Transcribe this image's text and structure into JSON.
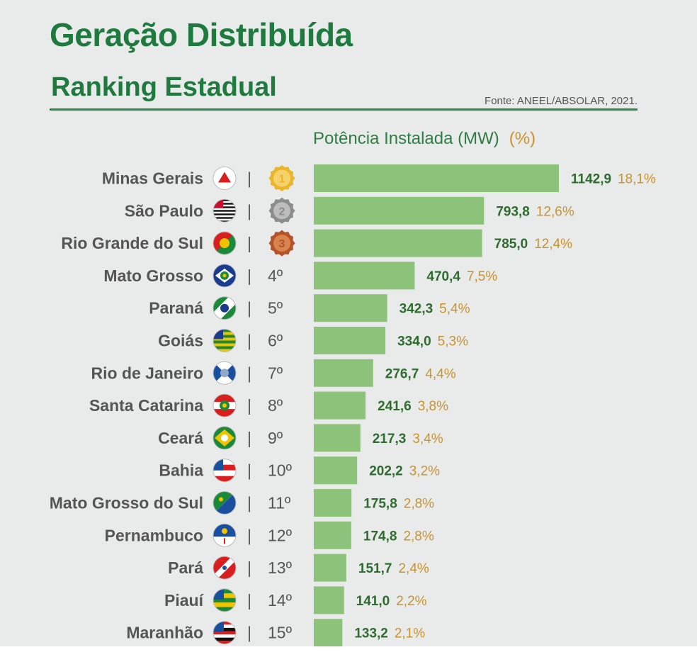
{
  "header": {
    "title": "Geração Distribuída",
    "subtitle": "Ranking Estadual",
    "source": "Fonte: ANEEL/ABSOLAR, 2021.",
    "column_label": "Potência Instalada (MW)",
    "pct_label": "(%)"
  },
  "colors": {
    "title": "#1e7a3e",
    "bar": "#8dc27a",
    "value": "#2f6b2f",
    "percent": "#c8932f",
    "state_label": "#555555"
  },
  "chart_data": {
    "type": "bar",
    "orientation": "horizontal",
    "title": "Potência Instalada (MW)",
    "categories": [
      "Minas Gerais",
      "São Paulo",
      "Rio Grande do Sul",
      "Mato Grosso",
      "Paraná",
      "Goiás",
      "Rio de Janeiro",
      "Santa Catarina",
      "Ceará",
      "Bahia",
      "Mato Grosso do Sul",
      "Pernambuco",
      "Pará",
      "Piauí",
      "Maranhão"
    ],
    "values": [
      1142.9,
      793.8,
      785.0,
      470.4,
      342.3,
      334.0,
      276.7,
      241.6,
      217.3,
      202.2,
      175.8,
      174.8,
      151.7,
      141.0,
      133.2
    ],
    "value_labels": [
      "1142,9",
      "793,8",
      "785,0",
      "470,4",
      "342,3",
      "334,0",
      "276,7",
      "241,6",
      "217,3",
      "202,2",
      "175,8",
      "174,8",
      "151,7",
      "141,0",
      "133,2"
    ],
    "percent_labels": [
      "18,1%",
      "12,6%",
      "12,4%",
      "7,5%",
      "5,4%",
      "5,3%",
      "4,4%",
      "3,8%",
      "3,4%",
      "3,2%",
      "2,8%",
      "2,8%",
      "2,4%",
      "2,2%",
      "2,1%"
    ],
    "rank_labels": [
      "1",
      "2",
      "3",
      "4º",
      "5º",
      "6º",
      "7º",
      "8º",
      "9º",
      "10º",
      "11º",
      "12º",
      "13º",
      "14º",
      "15º"
    ],
    "medal_ranks": [
      1,
      2,
      3
    ],
    "flag_icons": [
      "mg-flag-icon",
      "sp-flag-icon",
      "rs-flag-icon",
      "mt-flag-icon",
      "pr-flag-icon",
      "go-flag-icon",
      "rj-flag-icon",
      "sc-flag-icon",
      "ce-flag-icon",
      "ba-flag-icon",
      "ms-flag-icon",
      "pe-flag-icon",
      "pa-flag-icon",
      "pi-flag-icon",
      "ma-flag-icon"
    ],
    "separator": "|",
    "xlim": [
      0,
      1142.9
    ]
  }
}
